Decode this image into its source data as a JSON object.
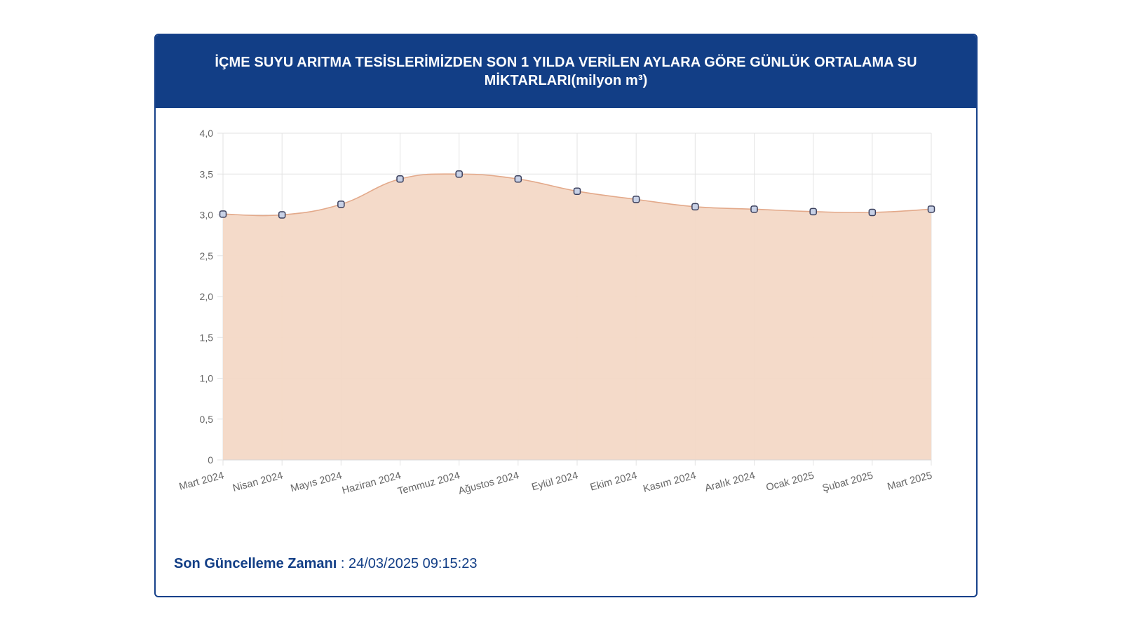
{
  "header": {
    "title": "İÇME SUYU ARITMA TESİSLERİMİZDEN SON 1 YILDA VERİLEN AYLARA GÖRE GÜNLÜK ORTALAMA SU MİKTARLARI(milyon m³)"
  },
  "footer": {
    "label": "Son Güncelleme Zamanı",
    "separator": " : ",
    "value": "24/03/2025 09:15:23"
  },
  "chart_data": {
    "type": "area",
    "title": "İÇME SUYU ARITMA TESİSLERİMİZDEN SON 1 YILDA VERİLEN AYLARA GÖRE GÜNLÜK ORTALAMA SU MİKTARLARI(milyon m³)",
    "categories": [
      "Mart 2024",
      "Nisan 2024",
      "Mayıs 2024",
      "Haziran 2024",
      "Temmuz 2024",
      "Ağustos 2024",
      "Eylül 2024",
      "Ekim 2024",
      "Kasım 2024",
      "Aralık 2024",
      "Ocak 2025",
      "Şubat 2025",
      "Mart 2025"
    ],
    "series": [
      {
        "values": [
          3.01,
          3.0,
          3.13,
          3.44,
          3.5,
          3.44,
          3.29,
          3.19,
          3.1,
          3.07,
          3.04,
          3.03,
          3.07
        ]
      }
    ],
    "ylim": [
      0,
      4
    ],
    "yticks": [
      "0",
      "0,5",
      "1,0",
      "1,5",
      "2,0",
      "2,5",
      "3,0",
      "3,5",
      "4,0"
    ],
    "grid": true,
    "colors": {
      "fill": "#f3d8c6",
      "line": "#e3a98a",
      "point_fill": "#c8d1e6",
      "point_stroke": "#3a3f5c",
      "grid": "#e3e3e3"
    }
  }
}
